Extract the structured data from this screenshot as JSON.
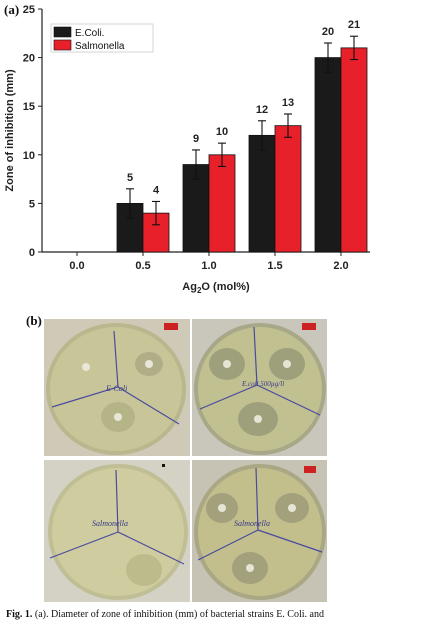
{
  "panel_a_label": "(a)",
  "panel_b_label": "(b)",
  "caption": {
    "fig": "Fig. 1.",
    "text": " (a). Diameter of zone of inhibition (mm) of bacterial strains E. Coli. and"
  },
  "chart_data": {
    "type": "bar",
    "title": "",
    "xlabel_main": "Ag",
    "xlabel_sub": "2",
    "xlabel_rest": "O (mol%)",
    "ylabel": "Zone of inhibition (mm)",
    "categories": [
      "0.0",
      "0.5",
      "1.0",
      "1.5",
      "2.0"
    ],
    "ylim": [
      0,
      25
    ],
    "yticks": [
      0,
      5,
      10,
      15,
      20,
      25
    ],
    "legend_position": "top-left",
    "series": [
      {
        "name": "E.Coli.",
        "color": "#1a1a1a",
        "values": [
          0,
          5,
          9,
          12,
          20
        ],
        "errors": [
          0,
          1.5,
          1.5,
          1.5,
          1.5
        ],
        "labels": [
          "",
          "5",
          "9",
          "12",
          "20"
        ]
      },
      {
        "name": "Salmonella",
        "color": "#e8202a",
        "values": [
          0,
          4,
          10,
          13,
          21
        ],
        "errors": [
          0,
          1.2,
          1.2,
          1.2,
          1.2
        ],
        "labels": [
          "",
          "4",
          "10",
          "13",
          "21"
        ]
      }
    ]
  },
  "plates": [
    {
      "name": "plate-ecoli-control",
      "handwriting": "E-Coli",
      "scale": "1 mm"
    },
    {
      "name": "plate-ecoli-ag",
      "handwriting": "E.coli 500µg/ll",
      "scale": "1 mm"
    },
    {
      "name": "plate-salmonella-control",
      "handwriting": "Salmonella",
      "scale": "1 mm"
    },
    {
      "name": "plate-salmonella-ag",
      "handwriting": "Salmonella",
      "scale": "1 mm"
    }
  ]
}
